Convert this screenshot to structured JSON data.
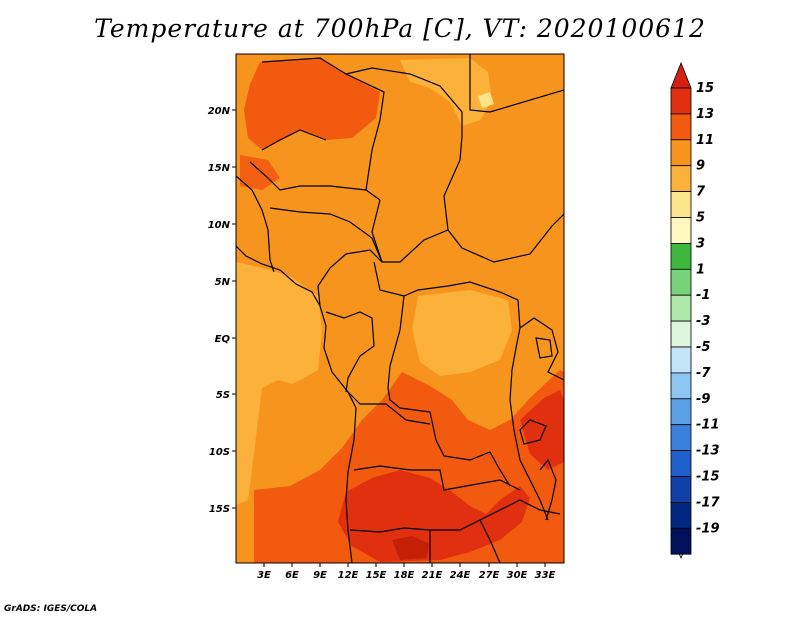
{
  "title": "Temperature at 700hPa [C], VT: 2020100612",
  "footer": "GrADS: IGES/COLA",
  "map": {
    "projection": "lat-lon",
    "lon_range": [
      0,
      35
    ],
    "lat_range": [
      -20,
      24
    ],
    "lat_ticks": [
      {
        "value": 20,
        "label": "20N"
      },
      {
        "value": 15,
        "label": "15N"
      },
      {
        "value": 10,
        "label": "10N"
      },
      {
        "value": 5,
        "label": "5N"
      },
      {
        "value": 0,
        "label": "EQ"
      },
      {
        "value": -5,
        "label": "5S"
      },
      {
        "value": -10,
        "label": "10S"
      },
      {
        "value": -15,
        "label": "15S"
      }
    ],
    "lon_ticks": [
      {
        "value": 3,
        "label": "3E"
      },
      {
        "value": 6,
        "label": "6E"
      },
      {
        "value": 9,
        "label": "9E"
      },
      {
        "value": 12,
        "label": "12E"
      },
      {
        "value": 15,
        "label": "15E"
      },
      {
        "value": 18,
        "label": "18E"
      },
      {
        "value": 21,
        "label": "21E"
      },
      {
        "value": 24,
        "label": "24E"
      },
      {
        "value": 27,
        "label": "27E"
      },
      {
        "value": 30,
        "label": "30E"
      },
      {
        "value": 33,
        "label": "33E"
      }
    ]
  },
  "colorbar": {
    "labels": [
      "15",
      "13",
      "11",
      "9",
      "7",
      "5",
      "3",
      "1",
      "-1",
      "-3",
      "-5",
      "-7",
      "-9",
      "-11",
      "-13",
      "-15",
      "-17",
      "-19"
    ],
    "colors": [
      "#e03010",
      "#f25a10",
      "#f7941e",
      "#fbb13a",
      "#fde38a",
      "#fff6c0",
      "#3cb93c",
      "#78d27a",
      "#aee8a8",
      "#def6de",
      "#c4e4fa",
      "#8cc4f2",
      "#5ca0e8",
      "#3c80de",
      "#2060cc",
      "#1040a8",
      "#002880",
      "#00105a"
    ],
    "top_arrow_color": "#d42010",
    "bottom_arrow_color": "#dcdcf4"
  }
}
